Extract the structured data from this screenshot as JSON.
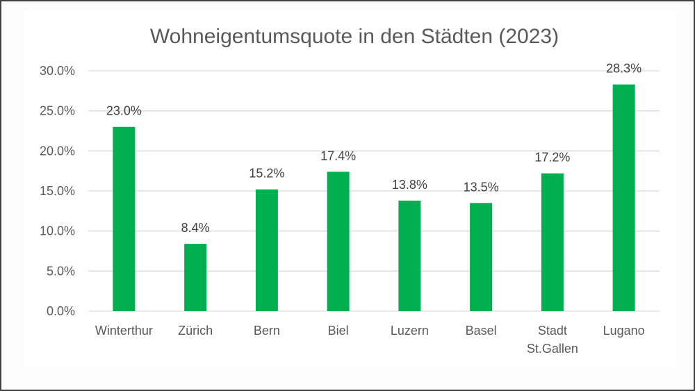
{
  "chart_data": {
    "type": "bar",
    "title": "Wohneigentumsquote in den Städten (2023)",
    "xlabel": "",
    "ylabel": "",
    "categories": [
      [
        "Winterthur"
      ],
      [
        "Zürich"
      ],
      [
        "Bern"
      ],
      [
        "Biel"
      ],
      [
        "Luzern"
      ],
      [
        "Basel"
      ],
      [
        "Stadt",
        "St.Gallen"
      ],
      [
        "Lugano"
      ]
    ],
    "values": [
      23.0,
      8.4,
      15.2,
      17.4,
      13.8,
      13.5,
      17.2,
      28.3
    ],
    "data_labels": [
      "23.0%",
      "8.4%",
      "15.2%",
      "17.4%",
      "13.8%",
      "13.5%",
      "17.2%",
      "28.3%"
    ],
    "ylim": [
      0,
      30
    ],
    "yticks": [
      0,
      5,
      10,
      15,
      20,
      25,
      30
    ],
    "ytick_labels": [
      "0.0%",
      "5.0%",
      "10.0%",
      "15.0%",
      "20.0%",
      "25.0%",
      "30.0%"
    ],
    "grid": true,
    "legend": "none",
    "bar_color": "#00b050",
    "grid_color": "#d9d9d9"
  }
}
